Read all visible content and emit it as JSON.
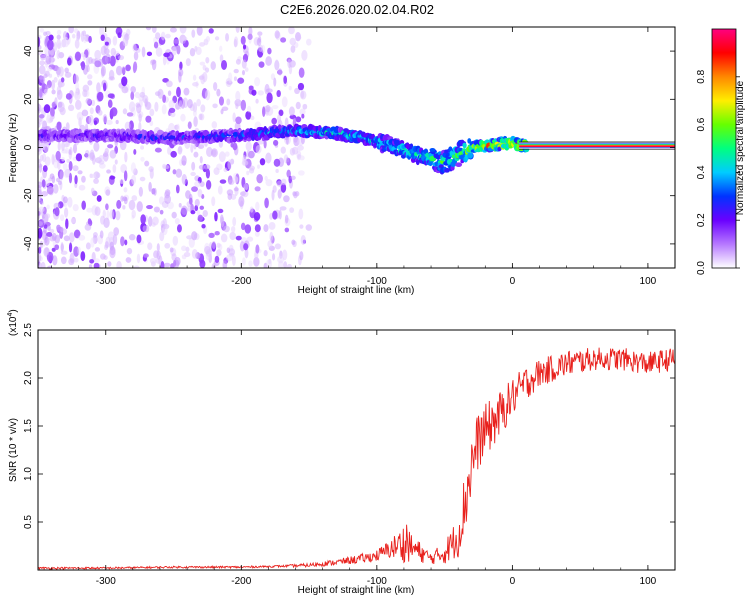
{
  "title": "C2E6.2026.020.02.04.R02",
  "chart_data": [
    {
      "type": "heatmap",
      "xlabel": "Height of straight line (km)",
      "ylabel": "Frequency (Hz)",
      "xlim": [
        -350,
        120
      ],
      "ylim": [
        -50,
        50
      ],
      "xticks": [
        -300,
        -200,
        -100,
        0,
        100
      ],
      "yticks": [
        -40,
        -20,
        0,
        20,
        40
      ],
      "colorbar": {
        "label": "Normalized spectral amplitude",
        "range": [
          0,
          1
        ],
        "ticks": [
          0.0,
          0.2,
          0.4,
          0.6,
          0.8
        ],
        "tick_labels": [
          "0.0",
          "0.2",
          "0.4",
          "0.6",
          "0.8"
        ],
        "colormap": [
          "#ffffff",
          "#b678ff",
          "#6a00ff",
          "#0033ff",
          "#00ccff",
          "#00ff80",
          "#66ff00",
          "#ffee00",
          "#ff8800",
          "#ff0000",
          "#ff0080"
        ]
      },
      "ridge": {
        "x": [
          -350,
          -300,
          -250,
          -200,
          -160,
          -130,
          -110,
          -90,
          -70,
          -50,
          -40,
          -30,
          -15,
          0,
          5,
          120
        ],
        "freq": [
          5,
          5,
          4,
          5,
          7,
          6,
          4,
          1,
          -3,
          -6,
          -3,
          0,
          1,
          2,
          1,
          0
        ],
        "amplitude": [
          0.25,
          0.25,
          0.3,
          0.35,
          0.45,
          0.5,
          0.5,
          0.5,
          0.55,
          0.55,
          0.55,
          0.7,
          0.85,
          0.9,
          0.95,
          0.95
        ]
      },
      "grid": false
    },
    {
      "type": "line",
      "xlabel": "Height of straight line (km)",
      "ylabel": "SNR (10 * v/v)",
      "y_multiplier_label": "(x10",
      "y_multiplier_exponent": "4",
      "y_multiplier_close": ")",
      "xlim": [
        -350,
        120
      ],
      "ylim": [
        0,
        2.5
      ],
      "xticks": [
        -300,
        -200,
        -100,
        0,
        100
      ],
      "yticks": [
        0.5,
        1.0,
        1.5,
        2.0,
        2.5
      ],
      "ytick_labels": [
        "0.5",
        "1.0",
        "1.5",
        "2.0",
        "2.5"
      ],
      "series": [
        {
          "color": "#e8201c",
          "x": [
            -350,
            -300,
            -250,
            -200,
            -170,
            -150,
            -130,
            -110,
            -100,
            -90,
            -80,
            -70,
            -60,
            -50,
            -40,
            -35,
            -30,
            -25,
            -20,
            -10,
            0,
            10,
            20,
            30,
            40,
            60,
            80,
            100,
            120
          ],
          "y": [
            0.02,
            0.02,
            0.03,
            0.03,
            0.04,
            0.05,
            0.08,
            0.12,
            0.15,
            0.22,
            0.28,
            0.2,
            0.12,
            0.18,
            0.35,
            0.7,
            1.1,
            1.35,
            1.45,
            1.6,
            1.8,
            1.95,
            2.05,
            2.1,
            2.15,
            2.2,
            2.2,
            2.15,
            2.2
          ],
          "noise": [
            0.01,
            0.01,
            0.01,
            0.01,
            0.01,
            0.02,
            0.03,
            0.05,
            0.06,
            0.1,
            0.2,
            0.12,
            0.06,
            0.12,
            0.22,
            0.35,
            0.35,
            0.3,
            0.28,
            0.25,
            0.2,
            0.18,
            0.15,
            0.14,
            0.14,
            0.12,
            0.12,
            0.12,
            0.12
          ]
        }
      ],
      "grid": false
    }
  ]
}
